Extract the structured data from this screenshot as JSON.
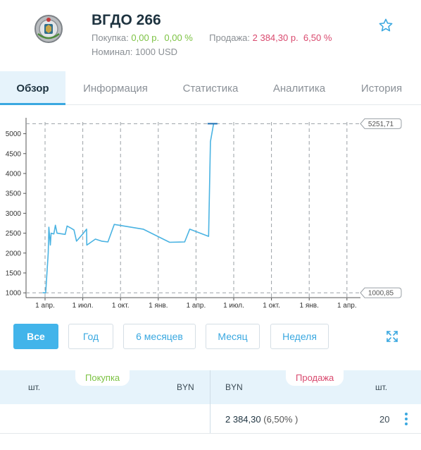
{
  "header": {
    "title": "ВГДО 266",
    "buy_label": "Покупка:",
    "buy_price": "0,00 р.",
    "buy_pct": "0,00 %",
    "sell_label": "Продажа:",
    "sell_price": "2 384,30 р.",
    "sell_pct": "6,50 %",
    "nominal_label": "Номинал:",
    "nominal_value": "1000 USD",
    "logo_icon": "coat-of-arms-icon",
    "favorite_icon": "star-outline-icon"
  },
  "tabs": [
    {
      "label": "Обзор",
      "active": true
    },
    {
      "label": "Информация",
      "active": false
    },
    {
      "label": "Статистика",
      "active": false
    },
    {
      "label": "Аналитика",
      "active": false
    },
    {
      "label": "История",
      "active": false
    }
  ],
  "chart_data": {
    "type": "line",
    "y_ticks": [
      1000,
      1500,
      2000,
      2500,
      3000,
      3500,
      4000,
      4500,
      5000
    ],
    "x_tick_labels": [
      "1 апр.",
      "1 июл.",
      "1 окт.",
      "1 янв.",
      "1 апр.",
      "1 июл.",
      "1 окт.",
      "1 янв.",
      "1 апр."
    ],
    "ylim": [
      950,
      5400
    ],
    "max_label": "5251,71",
    "min_label": "1000,85",
    "color": "#4ab3e2",
    "grid": "vertical dashed",
    "points": [
      [
        -0.2,
        1000.85
      ],
      [
        0.05,
        1000.85
      ],
      [
        0.25,
        2000
      ],
      [
        0.3,
        2650
      ],
      [
        0.42,
        2200
      ],
      [
        0.48,
        2500
      ],
      [
        0.7,
        2480
      ],
      [
        0.82,
        2700
      ],
      [
        0.95,
        2500
      ],
      [
        1.6,
        2470
      ],
      [
        1.75,
        2680
      ],
      [
        2.1,
        2620
      ],
      [
        2.3,
        2580
      ],
      [
        2.5,
        2300
      ],
      [
        3.0,
        2480
      ],
      [
        3.3,
        2600
      ],
      [
        3.32,
        2200
      ],
      [
        4.0,
        2350
      ],
      [
        4.5,
        2300
      ],
      [
        5.0,
        2280
      ],
      [
        5.5,
        2720
      ],
      [
        7.8,
        2600
      ],
      [
        9.9,
        2270
      ],
      [
        11.1,
        2280
      ],
      [
        11.5,
        2600
      ],
      [
        13.0,
        2420
      ],
      [
        13.15,
        4800
      ],
      [
        13.4,
        5251.71
      ],
      [
        13.55,
        5251.71
      ],
      [
        13.7,
        5251.71
      ]
    ]
  },
  "periods": [
    {
      "label": "Все",
      "active": true
    },
    {
      "label": "Год",
      "active": false
    },
    {
      "label": "6 месяцев",
      "active": false
    },
    {
      "label": "Месяц",
      "active": false
    },
    {
      "label": "Неделя",
      "active": false
    }
  ],
  "expand_icon": "fullscreen-expand-icon",
  "book": {
    "buy_title": "Покупка",
    "sell_title": "Продажа",
    "col_qty_left": "шт.",
    "col_cur_left": "BYN",
    "col_cur_right": "BYN",
    "col_qty_right": "шт.",
    "sell_rows": [
      {
        "price": "2 384,30",
        "pct": "(6,50% )",
        "qty": "20"
      }
    ],
    "more_icon": "kebab-menu-icon"
  },
  "colors": {
    "accent": "#42b4ea",
    "buy": "#7cc243",
    "sell": "#d9496e",
    "title": "#1e3340"
  }
}
